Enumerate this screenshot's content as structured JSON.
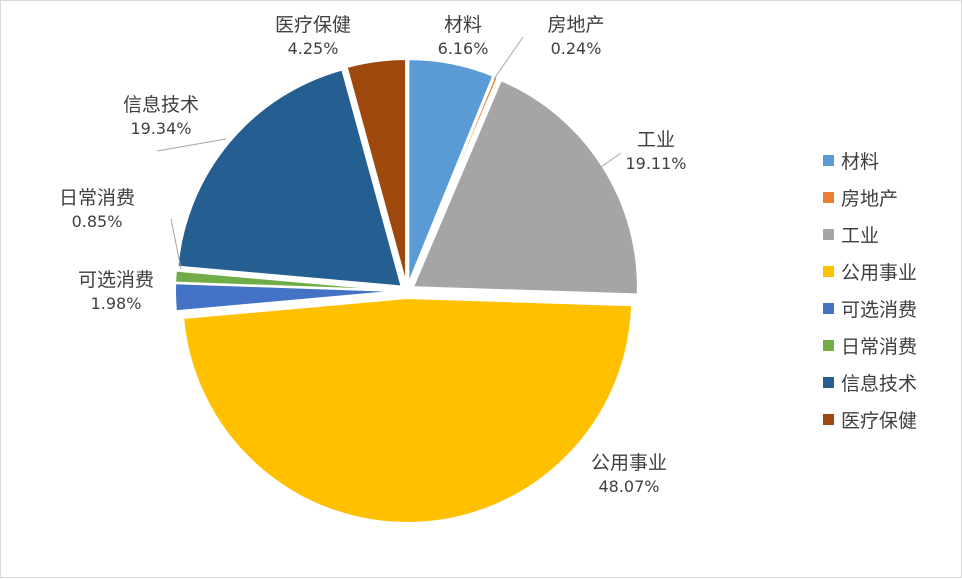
{
  "chart_data": {
    "type": "pie",
    "title": "",
    "legend_position": "right",
    "slices": [
      {
        "label": "材料",
        "value": 6.16,
        "value_label": "6.16%",
        "color": "#5B9BD5"
      },
      {
        "label": "房地产",
        "value": 0.24,
        "value_label": "0.24%",
        "color": "#ED7D31"
      },
      {
        "label": "工业",
        "value": 19.11,
        "value_label": "19.11%",
        "color": "#A5A5A5"
      },
      {
        "label": "公用事业",
        "value": 48.07,
        "value_label": "48.07%",
        "color": "#FFC000"
      },
      {
        "label": "可选消费",
        "value": 1.98,
        "value_label": "1.98%",
        "color": "#4472C4"
      },
      {
        "label": "日常消费",
        "value": 0.85,
        "value_label": "0.85%",
        "color": "#70AD47"
      },
      {
        "label": "信息技术",
        "value": 19.34,
        "value_label": "19.34%",
        "color": "#255E91"
      },
      {
        "label": "医疗保健",
        "value": 4.25,
        "value_label": "4.25%",
        "color": "#9E480E"
      }
    ]
  }
}
